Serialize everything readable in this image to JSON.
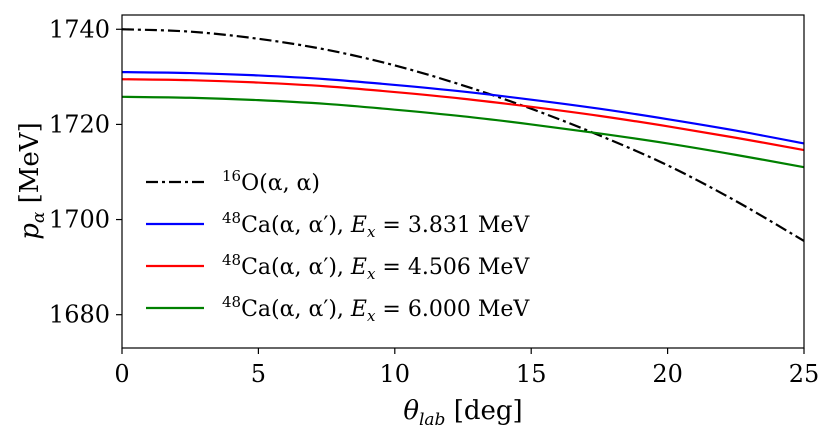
{
  "chart_data": {
    "type": "line",
    "title": "",
    "xlabel": "θ_lab [deg]",
    "ylabel": "p_α [MeV]",
    "xlabel_parts": {
      "symbol": "θ",
      "subscript": "lab",
      "unit": " [deg]"
    },
    "ylabel_parts": {
      "symbol": "p",
      "subscript": "α",
      "unit": " [MeV]"
    },
    "xlim": [
      0,
      25
    ],
    "ylim": [
      1673,
      1743
    ],
    "xticks": [
      0,
      5,
      10,
      15,
      20,
      25
    ],
    "yticks": [
      1680,
      1700,
      1720,
      1740
    ],
    "grid": false,
    "legend_position": "lower-left",
    "series": [
      {
        "name": "16O(α, α)",
        "legend_parts": {
          "sup": "16",
          "main": "O(α, α)"
        },
        "color": "#000000",
        "dash": "dashdot",
        "x": [
          0,
          2.5,
          5,
          7.5,
          10,
          12.5,
          15,
          17.5,
          20,
          22.5,
          25
        ],
        "y": [
          1740.0,
          1739.5,
          1738.0,
          1735.7,
          1732.4,
          1728.2,
          1723.3,
          1717.7,
          1711.4,
          1703.9,
          1695.5
        ]
      },
      {
        "name": "48Ca(α, α′), E_x = 3.831 MeV",
        "legend_parts": {
          "sup": "48",
          "main": "Ca(α, α′), ",
          "ex": "E",
          "exsub": "x",
          "value": " = 3.831 MeV"
        },
        "color": "#0000ff",
        "dash": "solid",
        "x": [
          0,
          2.5,
          5,
          7.5,
          10,
          12.5,
          15,
          17.5,
          20,
          22.5,
          25
        ],
        "y": [
          1731.0,
          1730.8,
          1730.3,
          1729.5,
          1728.3,
          1726.9,
          1725.2,
          1723.3,
          1721.1,
          1718.7,
          1716.0
        ]
      },
      {
        "name": "48Ca(α, α′), E_x = 4.506 MeV",
        "legend_parts": {
          "sup": "48",
          "main": "Ca(α, α′), ",
          "ex": "E",
          "exsub": "x",
          "value": " = 4.506 MeV"
        },
        "color": "#ff0000",
        "dash": "solid",
        "x": [
          0,
          2.5,
          5,
          7.5,
          10,
          12.5,
          15,
          17.5,
          20,
          22.5,
          25
        ],
        "y": [
          1729.5,
          1729.3,
          1728.8,
          1728.0,
          1726.8,
          1725.4,
          1723.7,
          1721.8,
          1719.6,
          1717.2,
          1714.6
        ]
      },
      {
        "name": "48Ca(α, α′), E_x = 6.000 MeV",
        "legend_parts": {
          "sup": "48",
          "main": "Ca(α, α′), ",
          "ex": "E",
          "exsub": "x",
          "value": " = 6.000 MeV"
        },
        "color": "#008000",
        "dash": "solid",
        "x": [
          0,
          2.5,
          5,
          7.5,
          10,
          12.5,
          15,
          17.5,
          20,
          22.5,
          25
        ],
        "y": [
          1725.8,
          1725.6,
          1725.1,
          1724.3,
          1723.1,
          1721.7,
          1720.0,
          1718.1,
          1716.0,
          1713.6,
          1711.0
        ]
      }
    ]
  }
}
